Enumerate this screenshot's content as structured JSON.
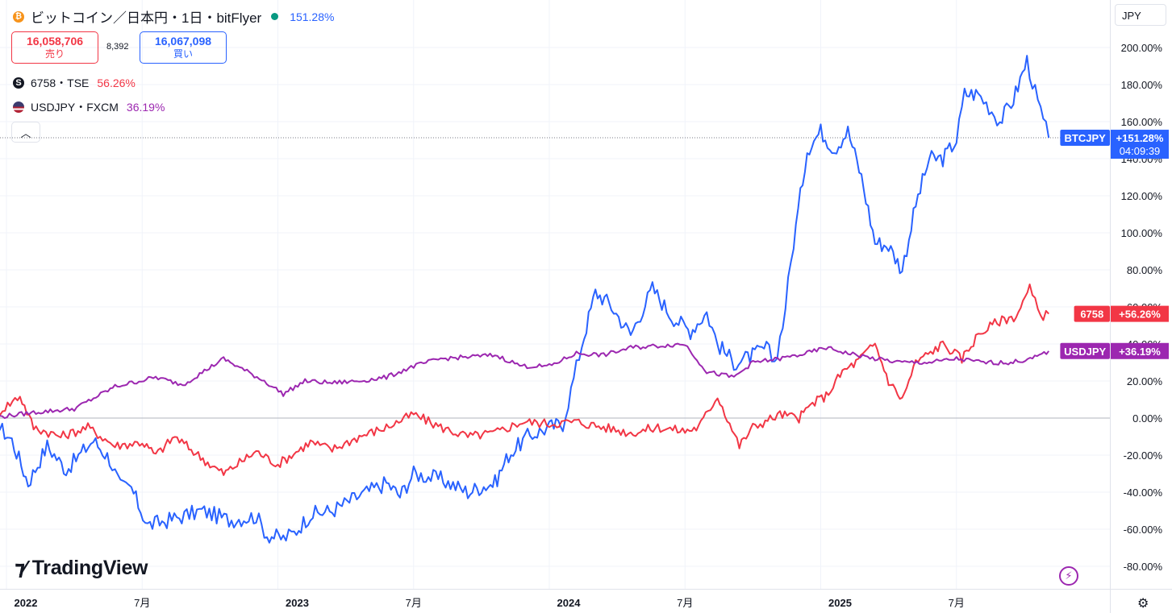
{
  "header": {
    "coin_icon": "bitcoin-coin-icon",
    "title": "ビットコイン／日本円・1日・bitFlyer",
    "change": "151.28%",
    "status_color": "#089981"
  },
  "quote": {
    "sell_price": "16,058,706",
    "sell_label": "売り",
    "spread": "8,392",
    "buy_price": "16,067,098",
    "buy_label": "買い"
  },
  "compare": [
    {
      "symbol": "6758・TSE",
      "change": "56.26%",
      "icon": "sony-s-icon"
    },
    {
      "symbol": "USDJPY・FXCM",
      "change": "36.19%",
      "icon": "us-flag-icon"
    }
  ],
  "currency_selector": "JPY",
  "collapse_icon": "chevron-up-icon",
  "logo_text": "TradingView",
  "chart_data": {
    "type": "line",
    "ylim": [
      -90,
      215
    ],
    "y_ticks": [
      "200.00%",
      "180.00%",
      "160.00%",
      "140.00%",
      "120.00%",
      "100.00%",
      "80.00%",
      "60.00%",
      "40.00%",
      "20.00%",
      "0.00%",
      "-20.00%",
      "-40.00%",
      "-60.00%",
      "-80.00%"
    ],
    "y_tick_values": [
      200,
      180,
      160,
      140,
      120,
      100,
      80,
      60,
      40,
      20,
      0,
      -20,
      -40,
      -60,
      -80
    ],
    "x_ticks": [
      {
        "t": 0.0,
        "label": "2022"
      },
      {
        "t": 0.5,
        "label": "7月"
      },
      {
        "t": 1.0,
        "label": "2023"
      },
      {
        "t": 1.5,
        "label": "7月"
      },
      {
        "t": 2.0,
        "label": "2024"
      },
      {
        "t": 2.5,
        "label": "7月"
      },
      {
        "t": 3.0,
        "label": "2025"
      },
      {
        "t": 3.5,
        "label": "7月"
      }
    ],
    "x_range": [
      -0.06,
      4.0
    ],
    "crosshair_value": 151.28,
    "series": [
      {
        "name": "BTCJPY",
        "color": "#2962ff",
        "axis_label": "BTCJPY",
        "axis_value": "+151.28%",
        "axis_time": "04:09:39",
        "points": [
          [
            -0.06,
            0
          ],
          [
            0.02,
            -12
          ],
          [
            0.08,
            -35
          ],
          [
            0.15,
            -15
          ],
          [
            0.22,
            -28
          ],
          [
            0.32,
            -12
          ],
          [
            0.38,
            -22
          ],
          [
            0.42,
            -37
          ],
          [
            0.46,
            -38
          ],
          [
            0.52,
            -58
          ],
          [
            0.6,
            -55
          ],
          [
            0.72,
            -50
          ],
          [
            0.82,
            -55
          ],
          [
            0.92,
            -53
          ],
          [
            0.96,
            -63
          ],
          [
            1.02,
            -65
          ],
          [
            1.06,
            -62
          ],
          [
            1.12,
            -52
          ],
          [
            1.2,
            -50
          ],
          [
            1.3,
            -42
          ],
          [
            1.4,
            -35
          ],
          [
            1.45,
            -42
          ],
          [
            1.5,
            -30
          ],
          [
            1.6,
            -33
          ],
          [
            1.7,
            -40
          ],
          [
            1.75,
            -37
          ],
          [
            1.8,
            -35
          ],
          [
            1.85,
            -20
          ],
          [
            1.92,
            -10
          ],
          [
            2.0,
            -5
          ],
          [
            2.05,
            -3
          ],
          [
            2.08,
            15
          ],
          [
            2.12,
            40
          ],
          [
            2.17,
            68
          ],
          [
            2.22,
            62
          ],
          [
            2.3,
            45
          ],
          [
            2.38,
            70
          ],
          [
            2.45,
            55
          ],
          [
            2.52,
            47
          ],
          [
            2.58,
            57
          ],
          [
            2.62,
            40
          ],
          [
            2.68,
            30
          ],
          [
            2.74,
            33
          ],
          [
            2.8,
            38
          ],
          [
            2.83,
            30
          ],
          [
            2.86,
            50
          ],
          [
            2.9,
            95
          ],
          [
            2.95,
            145
          ],
          [
            3.0,
            155
          ],
          [
            3.05,
            145
          ],
          [
            3.1,
            155
          ],
          [
            3.15,
            130
          ],
          [
            3.2,
            95
          ],
          [
            3.25,
            93
          ],
          [
            3.3,
            80
          ],
          [
            3.35,
            115
          ],
          [
            3.4,
            140
          ],
          [
            3.45,
            140
          ],
          [
            3.5,
            150
          ],
          [
            3.53,
            175
          ],
          [
            3.58,
            175
          ],
          [
            3.62,
            168
          ],
          [
            3.66,
            160
          ],
          [
            3.71,
            172
          ],
          [
            3.76,
            193
          ],
          [
            3.8,
            170
          ],
          [
            3.84,
            151.28
          ]
        ]
      },
      {
        "name": "6758",
        "color": "#f23645",
        "axis_label": "6758",
        "axis_value": "+56.26%",
        "points": [
          [
            -0.06,
            0
          ],
          [
            0.05,
            12
          ],
          [
            0.1,
            -5
          ],
          [
            0.2,
            -10
          ],
          [
            0.3,
            -5
          ],
          [
            0.4,
            -15
          ],
          [
            0.5,
            -13
          ],
          [
            0.55,
            -20
          ],
          [
            0.62,
            -10
          ],
          [
            0.75,
            -25
          ],
          [
            0.8,
            -30
          ],
          [
            0.85,
            -25
          ],
          [
            0.92,
            -18
          ],
          [
            1.0,
            -25
          ],
          [
            1.05,
            -20
          ],
          [
            1.12,
            -13
          ],
          [
            1.2,
            -17
          ],
          [
            1.3,
            -10
          ],
          [
            1.4,
            -5
          ],
          [
            1.5,
            2
          ],
          [
            1.6,
            -5
          ],
          [
            1.7,
            -10
          ],
          [
            1.8,
            -8
          ],
          [
            1.9,
            -2
          ],
          [
            2.0,
            -3
          ],
          [
            2.1,
            -2
          ],
          [
            2.2,
            -5
          ],
          [
            2.3,
            -8
          ],
          [
            2.4,
            -5
          ],
          [
            2.5,
            -7
          ],
          [
            2.55,
            -5
          ],
          [
            2.62,
            12
          ],
          [
            2.7,
            -15
          ],
          [
            2.75,
            -5
          ],
          [
            2.85,
            2
          ],
          [
            2.92,
            0
          ],
          [
            2.97,
            8
          ],
          [
            3.02,
            12
          ],
          [
            3.08,
            25
          ],
          [
            3.13,
            30
          ],
          [
            3.2,
            40
          ],
          [
            3.25,
            20
          ],
          [
            3.3,
            10
          ],
          [
            3.35,
            30
          ],
          [
            3.45,
            40
          ],
          [
            3.52,
            32
          ],
          [
            3.58,
            45
          ],
          [
            3.65,
            52
          ],
          [
            3.72,
            55
          ],
          [
            3.77,
            70
          ],
          [
            3.81,
            55
          ],
          [
            3.84,
            56.26
          ]
        ]
      },
      {
        "name": "USDJPY",
        "color": "#9c27b0",
        "axis_label": "USDJPY",
        "axis_value": "+36.19%",
        "points": [
          [
            -0.06,
            0
          ],
          [
            0.1,
            3
          ],
          [
            0.25,
            5
          ],
          [
            0.4,
            17
          ],
          [
            0.55,
            22
          ],
          [
            0.65,
            18
          ],
          [
            0.8,
            32
          ],
          [
            0.85,
            28
          ],
          [
            0.95,
            20
          ],
          [
            1.02,
            13
          ],
          [
            1.1,
            20
          ],
          [
            1.2,
            19
          ],
          [
            1.3,
            20
          ],
          [
            1.4,
            22
          ],
          [
            1.5,
            28
          ],
          [
            1.6,
            32
          ],
          [
            1.7,
            33
          ],
          [
            1.8,
            34
          ],
          [
            1.9,
            28
          ],
          [
            2.0,
            28
          ],
          [
            2.1,
            35
          ],
          [
            2.2,
            34
          ],
          [
            2.3,
            38
          ],
          [
            2.4,
            39
          ],
          [
            2.5,
            40
          ],
          [
            2.58,
            25
          ],
          [
            2.68,
            22
          ],
          [
            2.75,
            30
          ],
          [
            2.85,
            32
          ],
          [
            2.95,
            35
          ],
          [
            3.02,
            38
          ],
          [
            3.1,
            35
          ],
          [
            3.2,
            32
          ],
          [
            3.3,
            30
          ],
          [
            3.4,
            30
          ],
          [
            3.5,
            32
          ],
          [
            3.6,
            30
          ],
          [
            3.7,
            30
          ],
          [
            3.78,
            32
          ],
          [
            3.84,
            36.19
          ]
        ]
      }
    ]
  }
}
